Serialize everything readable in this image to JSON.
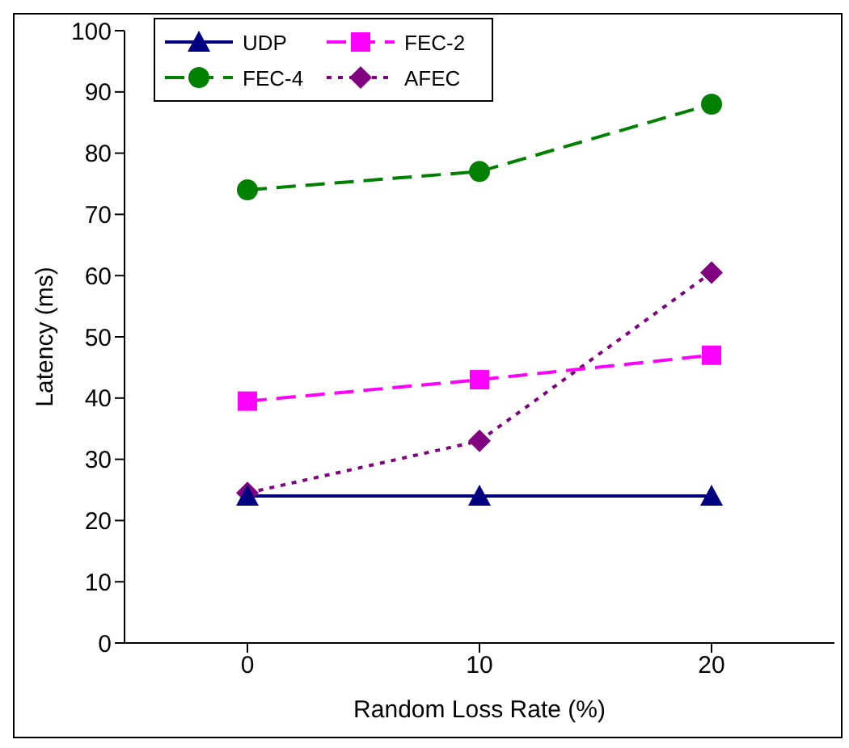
{
  "chart_data": {
    "type": "line",
    "xlabel": "Random Loss Rate (%)",
    "ylabel": "Latency (ms)",
    "categories": [
      "0",
      "10",
      "20"
    ],
    "series": [
      {
        "name": "UDP",
        "color": "#000080",
        "values": [
          24,
          24,
          24
        ],
        "marker": "triangle",
        "line_style": "solid"
      },
      {
        "name": "FEC-2",
        "color": "#ff00ff",
        "values": [
          39.5,
          43,
          47
        ],
        "marker": "square",
        "line_style": "dashed"
      },
      {
        "name": "FEC-4",
        "color": "#008000",
        "values": [
          74,
          77,
          88
        ],
        "marker": "circle",
        "line_style": "dashed"
      },
      {
        "name": "AFEC",
        "color": "#800080",
        "values": [
          24.5,
          33,
          60.5
        ],
        "marker": "diamond",
        "line_style": "dotted"
      }
    ],
    "ylim": [
      0,
      100
    ],
    "yticks": [
      0,
      10,
      20,
      30,
      40,
      50,
      60,
      70,
      80,
      90,
      100
    ],
    "grid": false,
    "legend": "top left"
  }
}
